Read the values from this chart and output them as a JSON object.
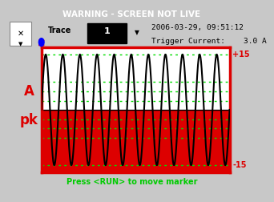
{
  "warning_text": "WARNING - SCREEN NOT LIVE",
  "warning_bg": "#dd0000",
  "warning_fg": "#ffffff",
  "outer_bg": "#c8c8c8",
  "header_bg": "#c8c8c8",
  "trace_label": "Trace",
  "trace_number": "1",
  "date_text": "2006-03-29, 09:51:12",
  "trigger_text": "Trigger Current:    3.0 A",
  "y_label_top": "A",
  "y_label_bot": "pk",
  "y_label_color": "#dd0000",
  "y_plus15": "+15",
  "y_minus15": "-15",
  "y_right_color": "#dd0000",
  "plot_border_color": "#dd0000",
  "plot_bg_top": "#ffffff",
  "plot_bg_bot": "#dd2222",
  "inner_bg": "#ffffff",
  "grid_color": "#00dd00",
  "sine_color": "#000000",
  "sine_amplitude": 15,
  "sine_cycles": 11,
  "sine_points": 2000,
  "marker_text": "Press <RUN> to move marker",
  "marker_color": "#00cc00",
  "zero_line_color": "#000000",
  "grid_levels": [
    7.5,
    5.0,
    2.5,
    -2.5,
    -5.0,
    -7.5,
    -15.0
  ],
  "ylim_min": -17,
  "ylim_max": 17
}
